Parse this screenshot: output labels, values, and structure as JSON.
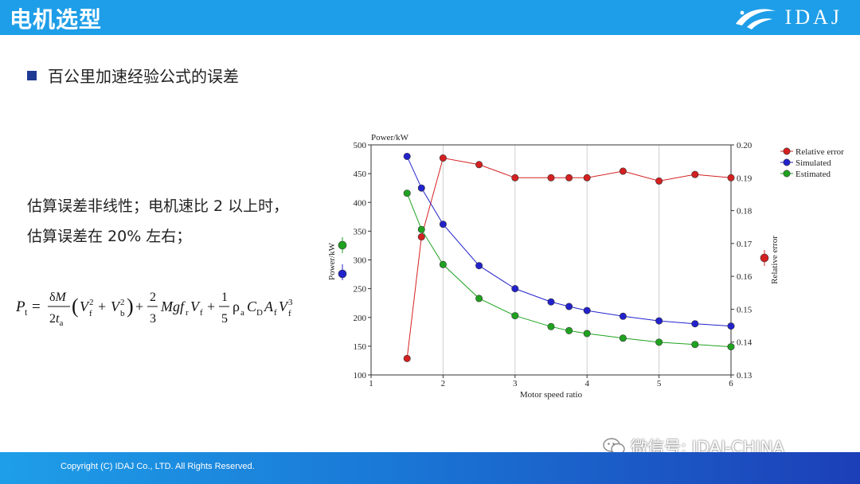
{
  "header": {
    "title": "电机选型",
    "logo_text": "IDAJ"
  },
  "bullet": {
    "text": "百公里加速经验公式的误差"
  },
  "description": {
    "line1": "估算误差非线性；电机速比 2 以上时，",
    "line2": "估算误差在 20% 左右；"
  },
  "footer": {
    "copyright": "Copyright (C) IDAJ Co., LTD. All Rights Reserved."
  },
  "watermark": {
    "text": "微信号: IDAJ-CHINA",
    "icon": "wechat-icon"
  },
  "colors": {
    "header": "#1e9ee8",
    "bullet": "#1f3a93",
    "relative_error": "#d42020",
    "simulated": "#2222cc",
    "estimated": "#1fa21f"
  },
  "chart_data": {
    "type": "line",
    "title": "",
    "xlabel": "Motor speed ratio",
    "ylabel": "Power/kW",
    "y_top_label": "Power/kW",
    "y2label": "Relative error",
    "xlim": [
      1,
      6
    ],
    "ylim": [
      100,
      500
    ],
    "y2lim": [
      0.13,
      0.2
    ],
    "x_ticks": [
      1,
      2,
      3,
      4,
      5,
      6
    ],
    "y_ticks": [
      100,
      150,
      200,
      250,
      300,
      350,
      400,
      450,
      500
    ],
    "y2_ticks": [
      "0.13",
      "0.14",
      "0.15",
      "0.16",
      "0.17",
      "0.18",
      "0.19",
      "0.20"
    ],
    "x_tick_labels": [
      "1",
      "2",
      "3",
      "4",
      "5",
      "6"
    ],
    "y_tick_labels": [
      "100",
      "150",
      "200",
      "250",
      "300",
      "350",
      "400",
      "450",
      "500"
    ],
    "grid": "vertical",
    "legend_position": "top-right",
    "series": [
      {
        "name": "Relative error",
        "axis": "right",
        "color": "#d42020",
        "x": [
          1.5,
          1.7,
          2.0,
          2.5,
          3.0,
          3.5,
          3.75,
          4.0,
          4.5,
          5.0,
          5.5,
          6.0
        ],
        "y": [
          0.135,
          0.172,
          0.196,
          0.194,
          0.19,
          0.19,
          0.19,
          0.19,
          0.192,
          0.189,
          0.191,
          0.19
        ]
      },
      {
        "name": "Simulated",
        "axis": "left",
        "color": "#2222cc",
        "x": [
          1.5,
          1.7,
          2.0,
          2.5,
          3.0,
          3.5,
          3.75,
          4.0,
          4.5,
          5.0,
          5.5,
          6.0
        ],
        "y": [
          480,
          425,
          362,
          290,
          250,
          227,
          219,
          212,
          202,
          194,
          189,
          185
        ]
      },
      {
        "name": "Estimated",
        "axis": "left",
        "color": "#1fa21f",
        "x": [
          1.5,
          1.7,
          2.0,
          2.5,
          3.0,
          3.5,
          3.75,
          4.0,
          4.5,
          5.0,
          5.5,
          6.0
        ],
        "y": [
          416,
          353,
          292,
          233,
          203,
          184,
          177,
          172,
          164,
          157,
          153,
          149
        ]
      }
    ]
  }
}
